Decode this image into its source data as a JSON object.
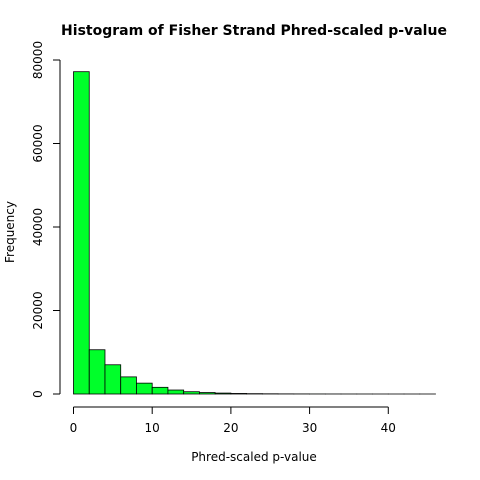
{
  "chart_data": {
    "type": "bar",
    "title": "Histogram of Fisher Strand Phred-scaled p-value",
    "xlabel": "Phred-scaled p-value",
    "ylabel": "Frequency",
    "bar_color": "#00ff2a",
    "bar_stroke": "#000000",
    "x_ticks": [
      "0",
      "10",
      "20",
      "30",
      "40"
    ],
    "y_ticks": [
      "0",
      "20000",
      "40000",
      "60000",
      "80000"
    ],
    "x_tick_values": [
      0,
      10,
      20,
      30,
      40
    ],
    "y_tick_values": [
      0,
      20000,
      40000,
      60000,
      80000
    ],
    "xlim": [
      0,
      46
    ],
    "ylim": [
      0,
      80000
    ],
    "bin_width": 2,
    "bins": [
      {
        "start": 0,
        "end": 2,
        "value": 77200
      },
      {
        "start": 2,
        "end": 4,
        "value": 10600
      },
      {
        "start": 4,
        "end": 6,
        "value": 7000
      },
      {
        "start": 6,
        "end": 8,
        "value": 4100
      },
      {
        "start": 8,
        "end": 10,
        "value": 2600
      },
      {
        "start": 10,
        "end": 12,
        "value": 1600
      },
      {
        "start": 12,
        "end": 14,
        "value": 950
      },
      {
        "start": 14,
        "end": 16,
        "value": 550
      },
      {
        "start": 16,
        "end": 18,
        "value": 350
      },
      {
        "start": 18,
        "end": 20,
        "value": 220
      },
      {
        "start": 20,
        "end": 22,
        "value": 130
      },
      {
        "start": 22,
        "end": 24,
        "value": 80
      },
      {
        "start": 24,
        "end": 26,
        "value": 50
      },
      {
        "start": 26,
        "end": 28,
        "value": 30
      },
      {
        "start": 28,
        "end": 30,
        "value": 20
      },
      {
        "start": 30,
        "end": 32,
        "value": 12
      },
      {
        "start": 32,
        "end": 34,
        "value": 8
      },
      {
        "start": 34,
        "end": 36,
        "value": 5
      },
      {
        "start": 36,
        "end": 38,
        "value": 3
      },
      {
        "start": 38,
        "end": 40,
        "value": 2
      },
      {
        "start": 40,
        "end": 42,
        "value": 1
      },
      {
        "start": 42,
        "end": 44,
        "value": 1
      },
      {
        "start": 44,
        "end": 46,
        "value": 1
      }
    ],
    "grid": false,
    "legend": "none"
  }
}
